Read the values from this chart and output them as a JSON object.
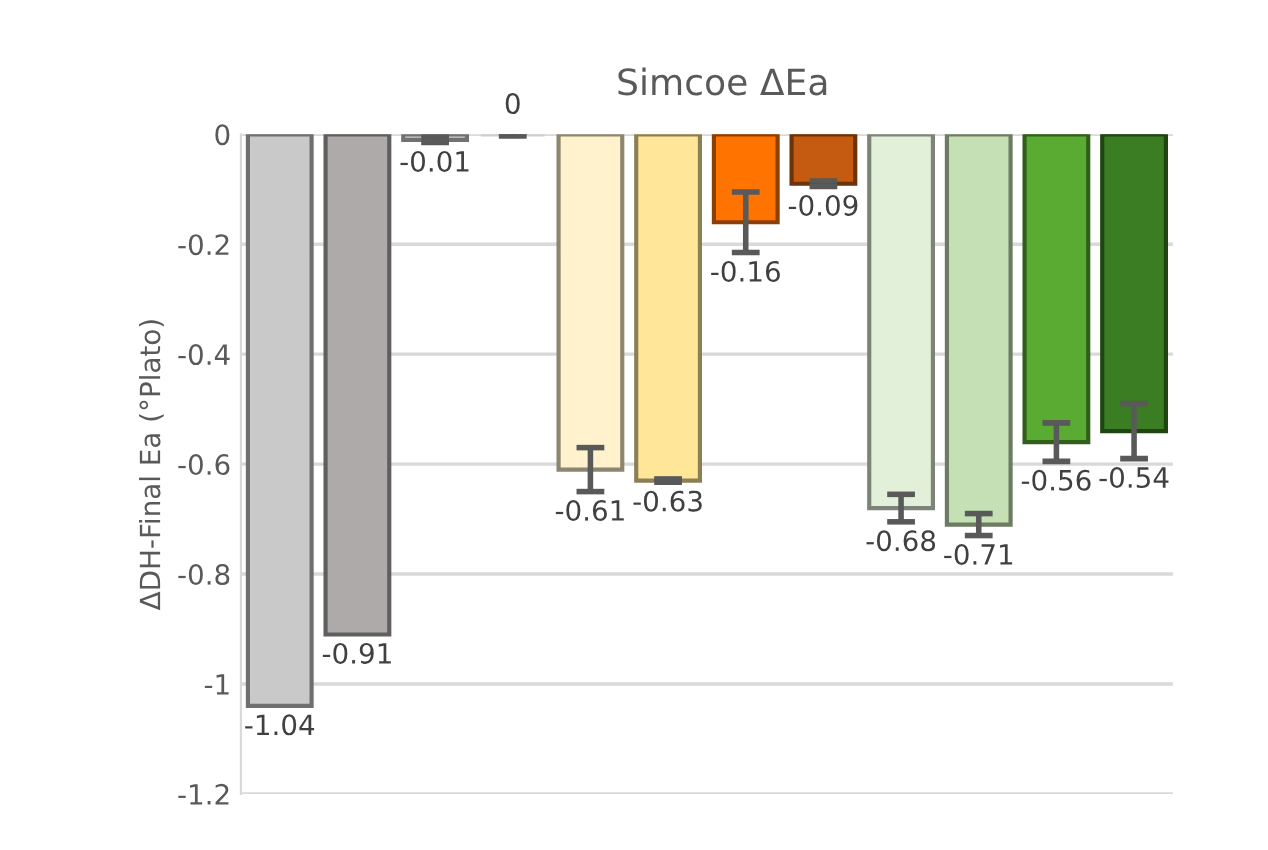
{
  "chart_data": {
    "type": "bar",
    "title": "Simcoe ΔEa",
    "ylabel": "ΔDH-Final Ea (°Plato)",
    "categories": [
      null,
      null,
      null,
      null,
      null,
      null,
      null,
      null,
      null,
      null,
      null,
      null
    ],
    "values": [
      -1.04,
      -0.91,
      -0.01,
      0,
      -0.61,
      -0.63,
      -0.16,
      -0.09,
      -0.68,
      -0.71,
      -0.56,
      -0.54
    ],
    "errors": [
      null,
      null,
      0.005,
      0.003,
      0.04,
      0.003,
      0.055,
      0.005,
      0.025,
      0.02,
      0.035,
      0.05
    ],
    "colors": [
      "#c9c9c9",
      "#aeaaaa",
      "#d0cece",
      "#d0cece",
      "#fff2cc",
      "#ffe699",
      "#ff7300",
      "#c55a11",
      "#e2f0d9",
      "#c5e0b4",
      "#5aab32",
      "#3a7d22"
    ],
    "ylim": [
      -1.2,
      0
    ],
    "yticks": [
      0,
      -0.2,
      -0.4,
      -0.6,
      -0.8,
      -1,
      -1.2
    ],
    "grid": "y",
    "data_labels": true
  }
}
